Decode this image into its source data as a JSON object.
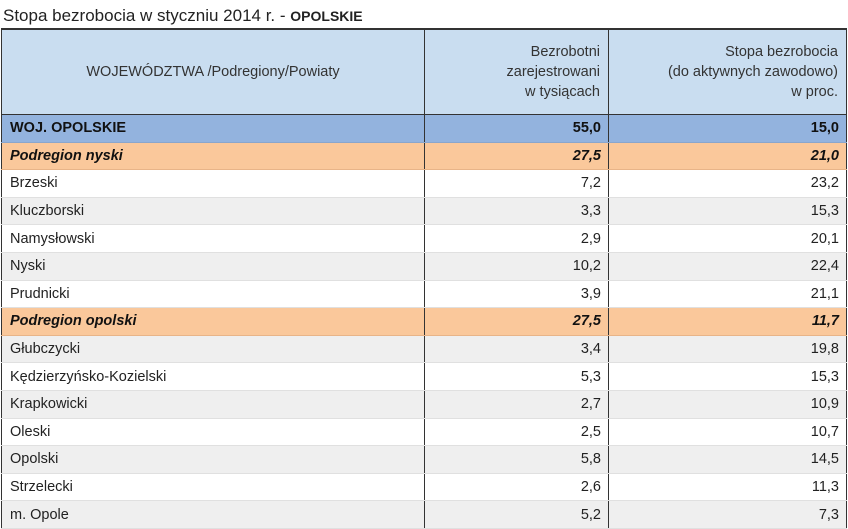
{
  "title": {
    "text": "Stopa bezrobocia w styczniu 2014 r. -",
    "region": "OPOLSKIE"
  },
  "headers": {
    "col1": "WOJEWÓDZTWA /Podregiony/Powiaty",
    "col2": [
      "Bezrobotni",
      "zarejestrowani",
      "w tysiącach"
    ],
    "col3": [
      "Stopa bezrobocia",
      "(do aktywnych zawodowo)",
      "w proc."
    ]
  },
  "rows": [
    {
      "name": "WOJ. OPOLSKIE",
      "unemployed": "55,0",
      "rate": "15,0",
      "kind": "total"
    },
    {
      "name": "Podregion nyski",
      "unemployed": "27,5",
      "rate": "21,0",
      "kind": "sub"
    },
    {
      "name": "Brzeski",
      "unemployed": "7,2",
      "rate": "23,2",
      "kind": "w"
    },
    {
      "name": "Kluczborski",
      "unemployed": "3,3",
      "rate": "15,3",
      "kind": "g"
    },
    {
      "name": "Namysłowski",
      "unemployed": "2,9",
      "rate": "20,1",
      "kind": "w"
    },
    {
      "name": "Nyski",
      "unemployed": "10,2",
      "rate": "22,4",
      "kind": "g"
    },
    {
      "name": "Prudnicki",
      "unemployed": "3,9",
      "rate": "21,1",
      "kind": "w"
    },
    {
      "name": "Podregion opolski",
      "unemployed": "27,5",
      "rate": "11,7",
      "kind": "sub"
    },
    {
      "name": "Głubczycki",
      "unemployed": "3,4",
      "rate": "19,8",
      "kind": "g"
    },
    {
      "name": "Kędzierzyńsko-Kozielski",
      "unemployed": "5,3",
      "rate": "15,3",
      "kind": "w"
    },
    {
      "name": "Krapkowicki",
      "unemployed": "2,7",
      "rate": "10,9",
      "kind": "g"
    },
    {
      "name": "Oleski",
      "unemployed": "2,5",
      "rate": "10,7",
      "kind": "w"
    },
    {
      "name": "Opolski",
      "unemployed": "5,8",
      "rate": "14,5",
      "kind": "g"
    },
    {
      "name": "Strzelecki",
      "unemployed": "2,6",
      "rate": "11,3",
      "kind": "w"
    },
    {
      "name": "m. Opole",
      "unemployed": "5,2",
      "rate": "7,3",
      "kind": "g"
    }
  ]
}
